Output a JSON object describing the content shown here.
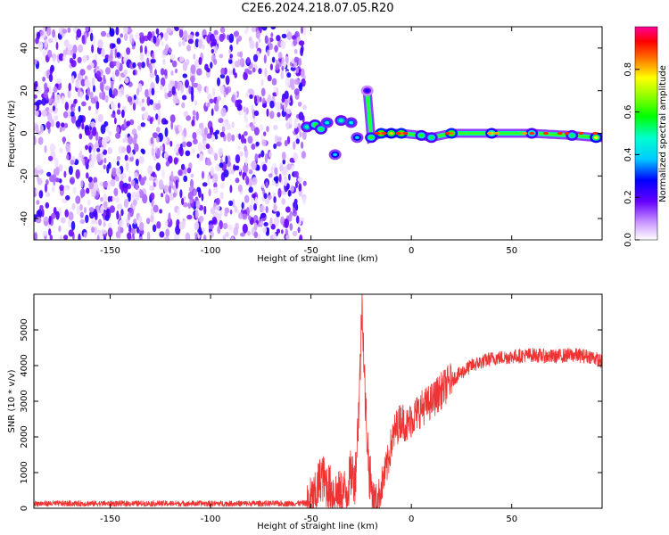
{
  "title": "C2E6.2024.218.07.05.R20",
  "chart_data": [
    {
      "type": "heatmap",
      "name": "spectrogram",
      "xlabel": "Height of straight line (km)",
      "ylabel": "Frequency (Hz)",
      "xlim": [
        -188,
        95
      ],
      "ylim": [
        -50,
        50
      ],
      "xticks": [
        -150,
        -100,
        -50,
        0,
        50
      ],
      "yticks": [
        -40,
        -20,
        0,
        20,
        40
      ],
      "colorbar": {
        "label": "Normalized spectral amplitude",
        "range": [
          0,
          1
        ],
        "ticks": [
          "0.0",
          "0.2",
          "0.4",
          "0.6",
          "0.8"
        ],
        "colormap": "white-purple-blue-cyan-green-yellow-red-magenta"
      },
      "noise_region_x": [
        -188,
        -53
      ],
      "signal_track": [
        {
          "x": -52,
          "y": 3,
          "v": 0.5
        },
        {
          "x": -48,
          "y": 4,
          "v": 0.6
        },
        {
          "x": -45,
          "y": 2,
          "v": 0.55
        },
        {
          "x": -42,
          "y": 5,
          "v": 0.45
        },
        {
          "x": -38,
          "y": -10,
          "v": 0.4
        },
        {
          "x": -35,
          "y": 6,
          "v": 0.5
        },
        {
          "x": -30,
          "y": 5,
          "v": 0.45
        },
        {
          "x": -27,
          "y": -2,
          "v": 0.4
        },
        {
          "x": -22,
          "y": 20,
          "v": 0.25
        },
        {
          "x": -20,
          "y": -2,
          "v": 0.6
        },
        {
          "x": -15,
          "y": 0,
          "v": 0.85
        },
        {
          "x": -10,
          "y": 0,
          "v": 0.8
        },
        {
          "x": -5,
          "y": 0,
          "v": 0.85
        },
        {
          "x": 5,
          "y": -1,
          "v": 0.6
        },
        {
          "x": 10,
          "y": -2,
          "v": 0.55
        },
        {
          "x": 20,
          "y": 0,
          "v": 0.85
        },
        {
          "x": 40,
          "y": 0,
          "v": 0.7
        },
        {
          "x": 60,
          "y": 0,
          "v": 0.6
        },
        {
          "x": 80,
          "y": -1,
          "v": 0.55
        },
        {
          "x": 92,
          "y": -2,
          "v": 0.75
        }
      ]
    },
    {
      "type": "line",
      "name": "snr",
      "color": "#ee3333",
      "xlabel": "Height of straight line (km)",
      "ylabel": "SNR (10 * v/v)",
      "xlim": [
        -188,
        95
      ],
      "ylim": [
        0,
        6000
      ],
      "xticks": [
        -150,
        -100,
        -50,
        0,
        50
      ],
      "yticks": [
        0,
        1000,
        2000,
        3000,
        4000,
        5000
      ],
      "x": [
        -188,
        -150,
        -100,
        -60,
        -52,
        -48,
        -45,
        -40,
        -36,
        -32,
        -30,
        -28,
        -26,
        -24.5,
        -23,
        -21,
        -19,
        -17,
        -15,
        -12,
        -10,
        -8,
        -5,
        -2,
        0,
        5,
        10,
        15,
        20,
        25,
        30,
        35,
        40,
        50,
        60,
        70,
        80,
        90,
        95
      ],
      "y": [
        100,
        100,
        100,
        100,
        110,
        300,
        900,
        500,
        350,
        500,
        1000,
        800,
        3000,
        5900,
        3000,
        1000,
        300,
        150,
        600,
        1200,
        1800,
        2200,
        2500,
        2300,
        2500,
        2800,
        3000,
        3300,
        3600,
        3800,
        4000,
        4100,
        4200,
        4250,
        4300,
        4250,
        4300,
        4250,
        4100
      ]
    }
  ]
}
